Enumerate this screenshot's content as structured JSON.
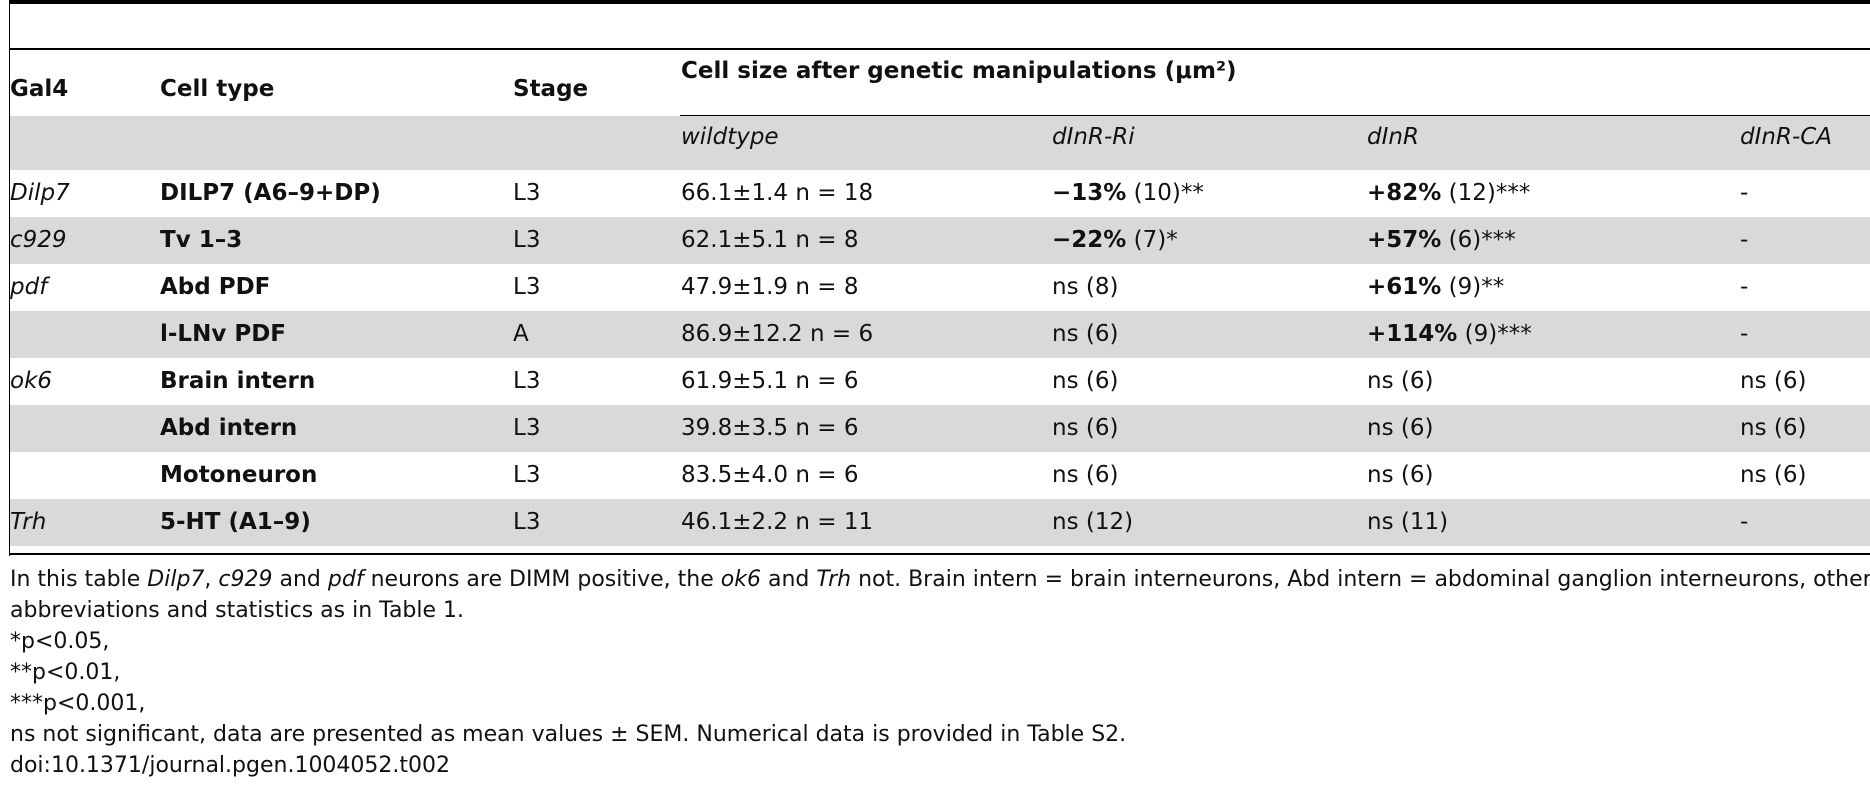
{
  "header": {
    "gal4": "Gal4",
    "cell_type": "Cell type",
    "stage": "Stage",
    "cell_size": "Cell size after genetic manipulations (μm²)",
    "sub": [
      "wildtype",
      "dInR-Ri",
      "dInR",
      "dInR-CA"
    ]
  },
  "rows": [
    {
      "gal4": "Dilp7",
      "cell": "DILP7 (A6–9+DP)",
      "stage": "L3",
      "wt": "66.1±1.4 n = 18",
      "ri_b": "−13%",
      "ri": " (10)**",
      "inr_b": "+82%",
      "inr": " (12)***",
      "ca": "-"
    },
    {
      "gal4": "c929",
      "cell": "Tv 1–3",
      "stage": "L3",
      "wt": "62.1±5.1 n = 8",
      "ri_b": "−22%",
      "ri": " (7)*",
      "inr_b": "+57%",
      "inr": " (6)***",
      "ca": "-"
    },
    {
      "gal4": "pdf",
      "cell": "Abd PDF",
      "stage": "L3",
      "wt": "47.9±1.9 n = 8",
      "ri_b": "",
      "ri": "ns (8)",
      "inr_b": "+61%",
      "inr": " (9)**",
      "ca": "-"
    },
    {
      "gal4": "",
      "cell": "l-LNv PDF",
      "stage": "A",
      "wt": "86.9±12.2 n = 6",
      "ri_b": "",
      "ri": "ns (6)",
      "inr_b": "+114%",
      "inr": " (9)***",
      "ca": "-"
    },
    {
      "gal4": "ok6",
      "cell": "Brain intern",
      "stage": "L3",
      "wt": "61.9±5.1 n = 6",
      "ri_b": "",
      "ri": "ns (6)",
      "inr_b": "",
      "inr": "ns (6)",
      "ca": "ns (6)"
    },
    {
      "gal4": "",
      "cell": "Abd intern",
      "stage": "L3",
      "wt": "39.8±3.5 n = 6",
      "ri_b": "",
      "ri": "ns (6)",
      "inr_b": "",
      "inr": "ns (6)",
      "ca": "ns (6)"
    },
    {
      "gal4": "",
      "cell": "Motoneuron",
      "stage": "L3",
      "wt": "83.5±4.0 n = 6",
      "ri_b": "",
      "ri": "ns (6)",
      "inr_b": "",
      "inr": "ns (6)",
      "ca": "ns (6)"
    },
    {
      "gal4": "Trh",
      "cell": "5-HT (A1–9)",
      "stage": "L3",
      "wt": "46.1±2.2 n = 11",
      "ri_b": "",
      "ri": "ns (12)",
      "inr_b": "",
      "inr": "ns (11)",
      "ca": "-"
    }
  ],
  "notes": {
    "line1_a": "In this table ",
    "line1_i1": "Dilp7",
    "line1_b": ", ",
    "line1_i2": "c929",
    "line1_c": " and ",
    "line1_i3": "pdf",
    "line1_d": " neurons are DIMM positive, the ",
    "line1_i4": "ok6",
    "line1_e": " and ",
    "line1_i5": "Trh",
    "line1_f": " not. Brain intern = brain interneurons, Abd intern = abdominal ganglion interneurons, other",
    "line2": "abbreviations and statistics as in Table 1.",
    "p1": "*p<0.05,",
    "p2": "**p<0.01,",
    "p3": "***p<0.001,",
    "ns": "ns not significant, data are presented as mean values ± SEM. Numerical data is provided in Table S2.",
    "doi": "doi:10.1371/journal.pgen.1004052.t002"
  }
}
